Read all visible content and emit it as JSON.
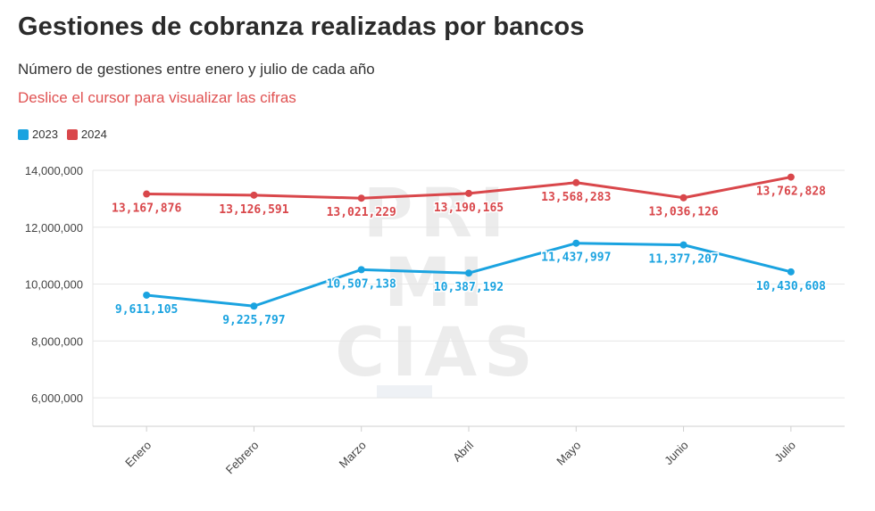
{
  "title": "Gestiones de cobranza realizadas por bancos",
  "subtitle": "Número de gestiones entre enero y julio de cada año",
  "hint": "Deslice el cursor para visualizar las cifras",
  "watermark": [
    "PRI",
    "MI",
    "CIAS"
  ],
  "colors": {
    "s2023": "#1aa3e0",
    "s2024": "#d9474b",
    "grid": "#e6e6e6",
    "axis_text": "#444444"
  },
  "chart_data": {
    "type": "line",
    "categories": [
      "Enero",
      "Febrero",
      "Marzo",
      "Abril",
      "Mayo",
      "Junio",
      "Julio"
    ],
    "series": [
      {
        "name": "2023",
        "values": [
          9611105,
          9225797,
          10507138,
          10387192,
          11437997,
          11377207,
          10430608
        ]
      },
      {
        "name": "2024",
        "values": [
          13167876,
          13126591,
          13021229,
          13190165,
          13568283,
          13036126,
          13762828
        ]
      }
    ],
    "data_labels": {
      "2023": [
        "9,611,105",
        "9,225,797",
        "10,507,138",
        "10,387,192",
        "11,437,997",
        "11,377,207",
        "10,430,608"
      ],
      "2024": [
        "13,167,876",
        "13,126,591",
        "13,021,229",
        "13,190,165",
        "13,568,283",
        "13,036,126",
        "13,762,828"
      ]
    },
    "y_ticks": [
      6000000,
      8000000,
      10000000,
      12000000,
      14000000
    ],
    "y_tick_labels": [
      "6,000,000",
      "8,000,000",
      "10,000,000",
      "12,000,000",
      "14,000,000"
    ],
    "ylim": [
      5000000,
      14000000
    ],
    "grid": true,
    "legend": "top-left"
  }
}
